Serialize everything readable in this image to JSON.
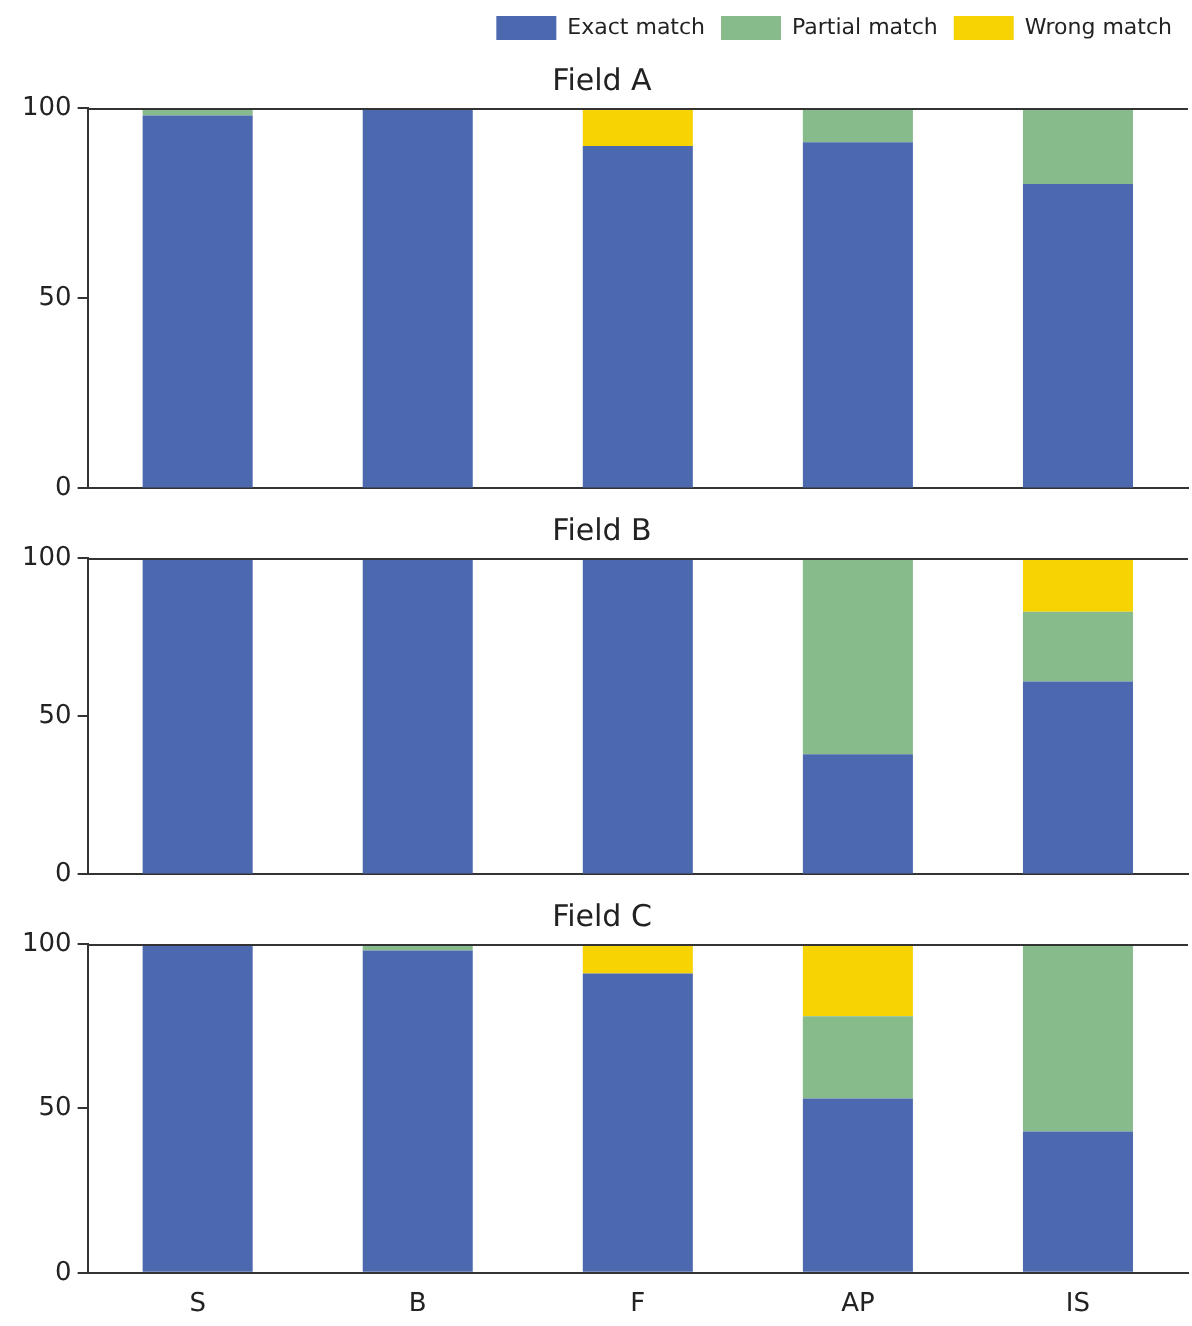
{
  "chart_data": [
    {
      "type": "bar",
      "title": "Field A",
      "categories": [
        null,
        null,
        null,
        null,
        null
      ],
      "stacked": true,
      "ylim": [
        0,
        100
      ],
      "yticks": [
        0,
        50,
        100
      ],
      "grid": false,
      "legend": "top right",
      "tick_labels": "y",
      "series": [
        {
          "name": "Exact match",
          "color": "#4c68ae",
          "values": [
            98,
            100,
            90,
            91,
            80
          ]
        },
        {
          "name": "Partial match",
          "color": "#88bb8c",
          "values": [
            2,
            0,
            0,
            9,
            20
          ]
        },
        {
          "name": "Wrong match",
          "color": "#f7d304",
          "values": [
            0,
            0,
            10,
            0,
            0
          ]
        }
      ]
    },
    {
      "type": "bar",
      "title": "Field B",
      "categories": [
        null,
        null,
        null,
        null,
        null
      ],
      "stacked": true,
      "ylim": [
        0,
        100
      ],
      "yticks": [
        0,
        50,
        100
      ],
      "grid": false,
      "tick_labels": "y",
      "series": [
        {
          "color": "#4c68ae",
          "values": [
            100,
            100,
            100,
            38,
            61
          ]
        },
        {
          "color": "#88bb8c",
          "values": [
            0,
            0,
            0,
            62,
            22
          ]
        },
        {
          "color": "#f7d304",
          "values": [
            0,
            0,
            0,
            0,
            17
          ]
        }
      ]
    },
    {
      "type": "bar",
      "title": "Field C",
      "categories": [
        "S",
        "B",
        "F",
        "AP",
        "IS"
      ],
      "stacked": true,
      "ylim": [
        0,
        100
      ],
      "yticks": [
        0,
        50,
        100
      ],
      "grid": false,
      "series": [
        {
          "color": "#4c68ae",
          "values": [
            100,
            98,
            91,
            53,
            43
          ]
        },
        {
          "color": "#88bb8c",
          "values": [
            0,
            2,
            0,
            25,
            57
          ]
        },
        {
          "color": "#f7d304",
          "values": [
            0,
            0,
            9,
            22,
            0
          ]
        }
      ]
    }
  ]
}
